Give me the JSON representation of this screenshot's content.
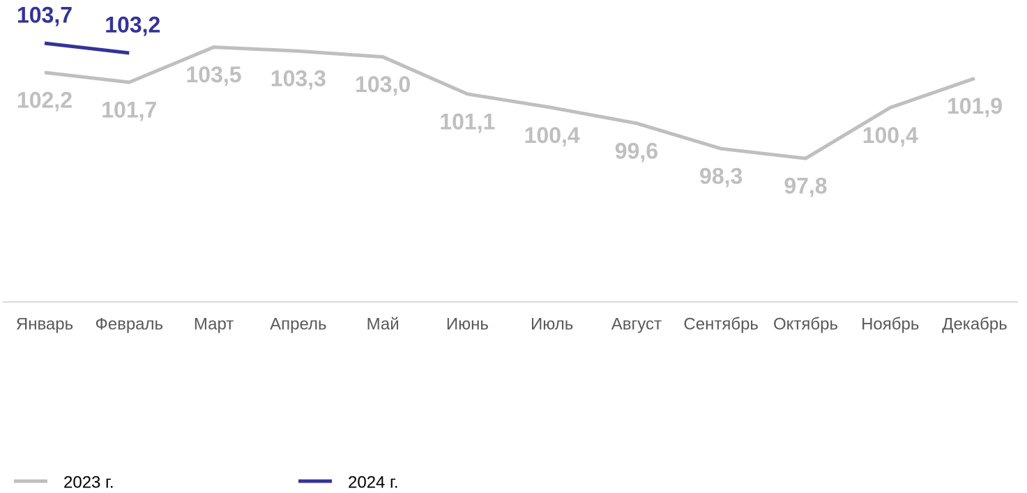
{
  "chart_data": {
    "type": "line",
    "categories": [
      "Январь",
      "Февраль",
      "Март",
      "Апрель",
      "Май",
      "Июнь",
      "Июль",
      "Август",
      "Сентябрь",
      "Октябрь",
      "Ноябрь",
      "Декабрь"
    ],
    "series": [
      {
        "name": "2023 г.",
        "color": "#bfbfbf",
        "values": [
          102.2,
          101.7,
          103.5,
          103.3,
          103.0,
          101.1,
          100.4,
          99.6,
          98.3,
          97.8,
          100.4,
          101.9
        ],
        "value_labels": [
          "102,2",
          "101,7",
          "103,5",
          "103,3",
          "103,0",
          "101,1",
          "100,4",
          "99,6",
          "98,3",
          "97,8",
          "100,4",
          "101,9"
        ]
      },
      {
        "name": "2024 г.",
        "color": "#333399",
        "values": [
          103.7,
          103.2,
          null,
          null,
          null,
          null,
          null,
          null,
          null,
          null,
          null,
          null
        ],
        "value_labels": [
          "103,7",
          "103,2",
          null,
          null,
          null,
          null,
          null,
          null,
          null,
          null,
          null,
          null
        ]
      }
    ],
    "ylim": [
      90,
      105
    ],
    "legend": "bottom"
  }
}
